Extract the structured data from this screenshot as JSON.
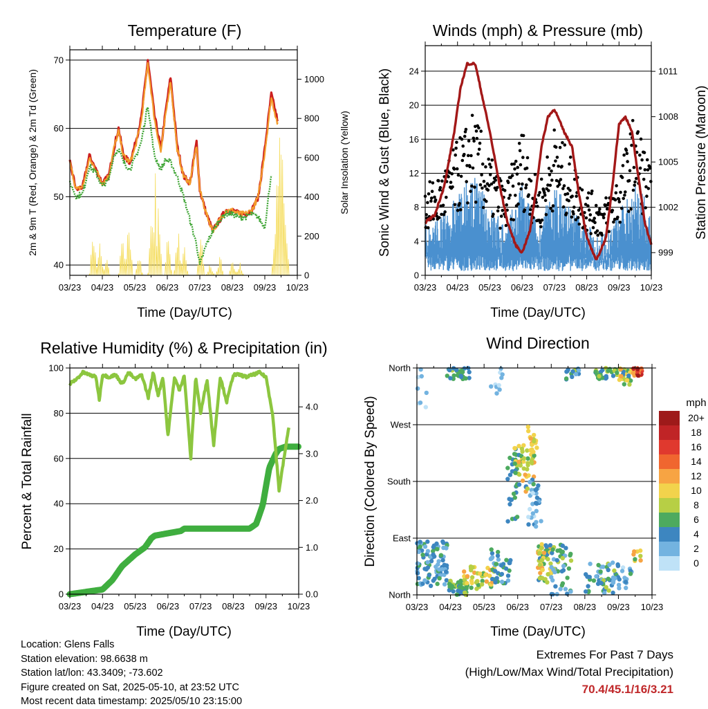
{
  "colors": {
    "temp_red": "#cc1f1f",
    "temp_orange": "#f39c2b",
    "dewpoint_green": "#3fa535",
    "solar_yellow": "#f5dc5a",
    "wind_blue": "#4a90cf",
    "gust_black": "#000000",
    "pressure_maroon": "#a31818",
    "rh_green": "#8cc63f",
    "precip_green": "#3fae3f",
    "extremes_red": "#c0282a"
  },
  "chart_data": [
    {
      "id": "temperature",
      "type": "line",
      "title": "Temperature (F)",
      "xlabel": "Time (Day/UTC)",
      "ylabel": "2m & 9m T (Red, Orange) & 2m Td (Green)",
      "ylabel_right": "Solar Insolation (Yellow)",
      "x_ticks": [
        "03/23",
        "04/23",
        "05/23",
        "06/23",
        "07/23",
        "08/23",
        "09/23",
        "10/23"
      ],
      "ylim": [
        38.5,
        71.5
      ],
      "y_ticks": [
        40,
        50,
        60,
        70
      ],
      "y2lim": [
        0,
        1150
      ],
      "y2_ticks": [
        0,
        200,
        400,
        600,
        800,
        1000
      ],
      "x": [
        0,
        0.2,
        0.4,
        0.6,
        0.8,
        1.0,
        1.2,
        1.35,
        1.5,
        1.65,
        1.85,
        2.0,
        2.2,
        2.4,
        2.6,
        2.8,
        2.95,
        3.1,
        3.3,
        3.5,
        3.7,
        3.9,
        4.0,
        4.2,
        4.4,
        4.6,
        4.8,
        5.0,
        5.2,
        5.4,
        5.6,
        5.8,
        6.0,
        6.2,
        6.4,
        6.6,
        6.8,
        7.0
      ],
      "series": [
        {
          "name": "2m T",
          "color": "#cc1f1f",
          "values": [
            55,
            51,
            51.5,
            56,
            54,
            52,
            53,
            57,
            60,
            56,
            55,
            57.5,
            61.5,
            70,
            62,
            57,
            62.5,
            67.5,
            57.5,
            53,
            52,
            58,
            51,
            47.5,
            45,
            46.5,
            48,
            48,
            47.5,
            47.5,
            48,
            50,
            57,
            65,
            61,
            null,
            null,
            null
          ]
        },
        {
          "name": "9m T",
          "color": "#f39c2b",
          "values": [
            55,
            51,
            51.5,
            55.5,
            54,
            52,
            53,
            57,
            59.5,
            56,
            55,
            57,
            61,
            69.5,
            61.5,
            56.5,
            62,
            67,
            57,
            53,
            52,
            57.5,
            51,
            47.5,
            45,
            46.5,
            48,
            48,
            47.5,
            47.5,
            48,
            50,
            56.5,
            64.5,
            60.5,
            null,
            null,
            null
          ]
        },
        {
          "name": "2m Td",
          "color": "#3fa535",
          "values": [
            52,
            50,
            50.5,
            54.5,
            53.5,
            51.5,
            52.5,
            56,
            57,
            55,
            54,
            55.5,
            58,
            63.5,
            56,
            54,
            55.5,
            55,
            53,
            50,
            46.5,
            43,
            40,
            43,
            45,
            46.5,
            47.5,
            47.5,
            47,
            47,
            47.5,
            47,
            45.5,
            53.5,
            null,
            null,
            null,
            null
          ]
        }
      ]
    },
    {
      "id": "winds",
      "type": "scatter",
      "title": "Winds (mph) & Pressure (mb)",
      "xlabel": "Time (Day/UTC)",
      "ylabel": "Sonic Wind & Gust (Blue, Black)",
      "ylabel_right": "Station Pressure (Maroon)",
      "x_ticks": [
        "03/23",
        "04/23",
        "05/23",
        "06/23",
        "07/23",
        "08/23",
        "09/23",
        "10/23"
      ],
      "ylim": [
        0,
        27
      ],
      "y_ticks": [
        0,
        4,
        8,
        12,
        16,
        20,
        24
      ],
      "y2lim": [
        997.5,
        1012.7
      ],
      "y2_ticks": [
        999,
        1002,
        1005,
        1008,
        1011
      ],
      "pressure": {
        "x": [
          0,
          0.3,
          0.6,
          0.9,
          1.1,
          1.3,
          1.55,
          1.8,
          2.0,
          2.3,
          2.55,
          2.8,
          3.0,
          3.25,
          3.45,
          3.6,
          3.8,
          4.0,
          4.3,
          4.55,
          4.75,
          5.0,
          5.3,
          5.6,
          5.8,
          6.0,
          6.2,
          6.4,
          6.6,
          6.8,
          7.0
        ],
        "values": [
          1001,
          1001.5,
          1003.5,
          1007,
          1010,
          1011.5,
          1011.5,
          1009,
          1007,
          1003.5,
          1001,
          999.5,
          999,
          1000.5,
          1003.5,
          1006,
          1008,
          1008.5,
          1007,
          1006,
          1003,
          1000,
          998.5,
          1000,
          1003.5,
          1007.5,
          1008,
          1007,
          1004,
          1001,
          999.5
        ]
      }
    },
    {
      "id": "humidity",
      "type": "line",
      "title": "Relative Humidity (%) & Precipitation (in)",
      "xlabel": "Time (Day/UTC)",
      "ylabel": "Percent & Total Rainfall",
      "x_ticks": [
        "03/23",
        "04/23",
        "05/23",
        "06/23",
        "07/23",
        "08/23",
        "09/23",
        "10/23"
      ],
      "ylim": [
        0,
        100
      ],
      "y_ticks": [
        0,
        20,
        40,
        60,
        80,
        100
      ],
      "y2lim": [
        0,
        4.83
      ],
      "y2_ticks": [
        "0.0",
        "1.0",
        "2.0",
        "3.0",
        "4.0"
      ],
      "rh": {
        "x": [
          0,
          0.2,
          0.4,
          0.6,
          0.8,
          0.9,
          1.0,
          1.2,
          1.4,
          1.6,
          1.8,
          2.0,
          2.2,
          2.4,
          2.55,
          2.7,
          2.85,
          3.0,
          3.2,
          3.35,
          3.5,
          3.7,
          3.85,
          4.0,
          4.2,
          4.4,
          4.6,
          4.8,
          5.0,
          5.2,
          5.4,
          5.6,
          5.8,
          6.0,
          6.2,
          6.4,
          6.55,
          6.7,
          6.85,
          7.0
        ],
        "values": [
          93,
          95,
          98,
          97,
          96,
          86,
          97,
          96,
          97,
          93,
          98,
          95,
          97,
          87,
          98,
          88,
          96,
          70,
          96,
          90,
          97,
          60,
          96,
          80,
          95,
          66,
          96,
          85,
          97,
          97,
          96,
          97,
          98,
          96,
          80,
          46,
          60,
          74,
          null,
          null
        ]
      },
      "precip": {
        "x": [
          0,
          0.5,
          1.0,
          1.3,
          1.6,
          2.0,
          2.3,
          2.5,
          2.6,
          3.0,
          3.4,
          3.5,
          4.0,
          4.5,
          5.0,
          5.5,
          5.7,
          5.9,
          6.1,
          6.3,
          6.4,
          6.6,
          6.8,
          7.0
        ],
        "values": [
          0,
          0.05,
          0.1,
          0.3,
          0.6,
          0.85,
          1.0,
          1.2,
          1.25,
          1.3,
          1.35,
          1.4,
          1.4,
          1.4,
          1.4,
          1.4,
          1.5,
          1.9,
          2.7,
          3.0,
          3.1,
          3.15,
          3.15,
          3.15
        ]
      }
    },
    {
      "id": "direction",
      "type": "scatter",
      "title": "Wind Direction",
      "xlabel": "Time (Day/UTC)",
      "ylabel": "Direction (Colored By Speed)",
      "x_ticks": [
        "03/23",
        "04/23",
        "05/23",
        "06/23",
        "07/23",
        "08/23",
        "09/23",
        "10/23"
      ],
      "y_ticks": [
        "North",
        "East",
        "South",
        "West",
        "North"
      ],
      "legend": {
        "title": "mph",
        "labels": [
          "20+",
          "18",
          "16",
          "14",
          "12",
          "10",
          "8",
          "6",
          "4",
          "2",
          "0"
        ],
        "colors": [
          "#9e1a1a",
          "#c02426",
          "#e0392e",
          "#f0662f",
          "#f7a443",
          "#f2d34c",
          "#b7cf45",
          "#4daa5f",
          "#3d86c0",
          "#73b3e0",
          "#bfe2f7"
        ]
      }
    }
  ],
  "info": {
    "location": "Location: Glens Falls",
    "elevation": "Station elevation: 98.6638 m",
    "latlon": "Station lat/lon: 43.3409; -73.602",
    "created": "Figure created on Sat, 2025-05-10, at 23:52 UTC",
    "latest": "Most recent data timestamp: 2025/05/10 23:15:00"
  },
  "extremes": {
    "title": "Extremes For Past 7 Days",
    "subtitle": "(High/Low/Max Wind/Total Precipitation)",
    "values": "70.4/45.1/16/3.21"
  }
}
